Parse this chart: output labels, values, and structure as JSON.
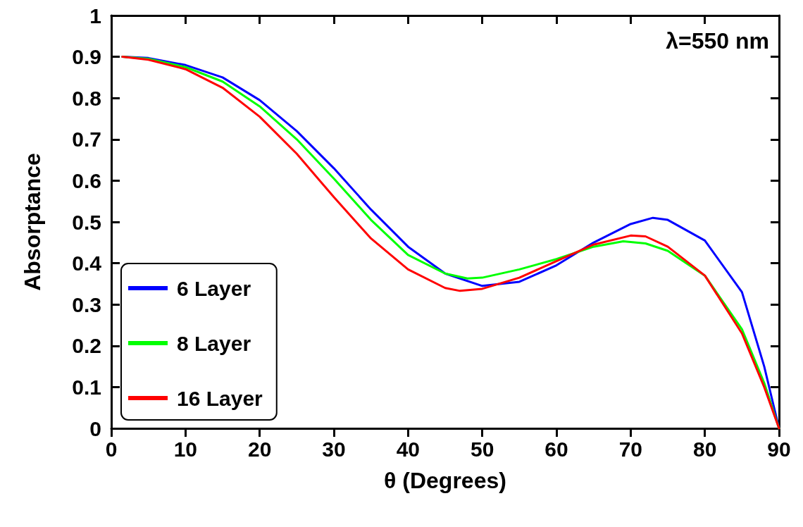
{
  "chart_data": {
    "type": "line",
    "xlabel": "θ (Degrees)",
    "ylabel": "Absorptance",
    "annotations": [
      "λ=550 nm"
    ],
    "xlim": [
      0,
      90
    ],
    "xticks": [
      0,
      10,
      20,
      30,
      40,
      50,
      60,
      70,
      80,
      90
    ],
    "ylim": [
      0,
      1
    ],
    "yticks": [
      0,
      0.1,
      0.2,
      0.3,
      0.4,
      0.5,
      0.6,
      0.7,
      0.8,
      0.9,
      1
    ],
    "grid": false,
    "legend": "bottom left",
    "marker": "none",
    "line_style": "solid",
    "series": [
      {
        "name": "6 Layer",
        "color": "#0000ff",
        "x": [
          1.5,
          5,
          10,
          15,
          20,
          25,
          30,
          35,
          40,
          45,
          50,
          55,
          60,
          65,
          70,
          73,
          75,
          80,
          85,
          88,
          90
        ],
        "values": [
          0.9,
          0.897,
          0.88,
          0.85,
          0.795,
          0.72,
          0.63,
          0.53,
          0.44,
          0.375,
          0.345,
          0.355,
          0.395,
          0.45,
          0.495,
          0.51,
          0.505,
          0.455,
          0.33,
          0.15,
          0
        ]
      },
      {
        "name": "8 Layer",
        "color": "#00ff00",
        "x": [
          1.5,
          5,
          10,
          15,
          20,
          25,
          30,
          35,
          40,
          45,
          48,
          50,
          55,
          60,
          65,
          69,
          72,
          75,
          80,
          85,
          88,
          90
        ],
        "values": [
          0.9,
          0.895,
          0.875,
          0.84,
          0.78,
          0.7,
          0.605,
          0.505,
          0.42,
          0.375,
          0.363,
          0.365,
          0.385,
          0.41,
          0.44,
          0.453,
          0.448,
          0.43,
          0.37,
          0.24,
          0.11,
          0
        ]
      },
      {
        "name": "16 Layer",
        "color": "#ff0000",
        "x": [
          1.5,
          5,
          10,
          15,
          20,
          25,
          30,
          35,
          40,
          45,
          47,
          50,
          55,
          60,
          65,
          70,
          72,
          75,
          80,
          85,
          88,
          90
        ],
        "values": [
          0.9,
          0.893,
          0.87,
          0.825,
          0.755,
          0.665,
          0.56,
          0.46,
          0.385,
          0.34,
          0.333,
          0.338,
          0.365,
          0.405,
          0.445,
          0.467,
          0.465,
          0.44,
          0.37,
          0.23,
          0.1,
          0
        ]
      }
    ]
  }
}
